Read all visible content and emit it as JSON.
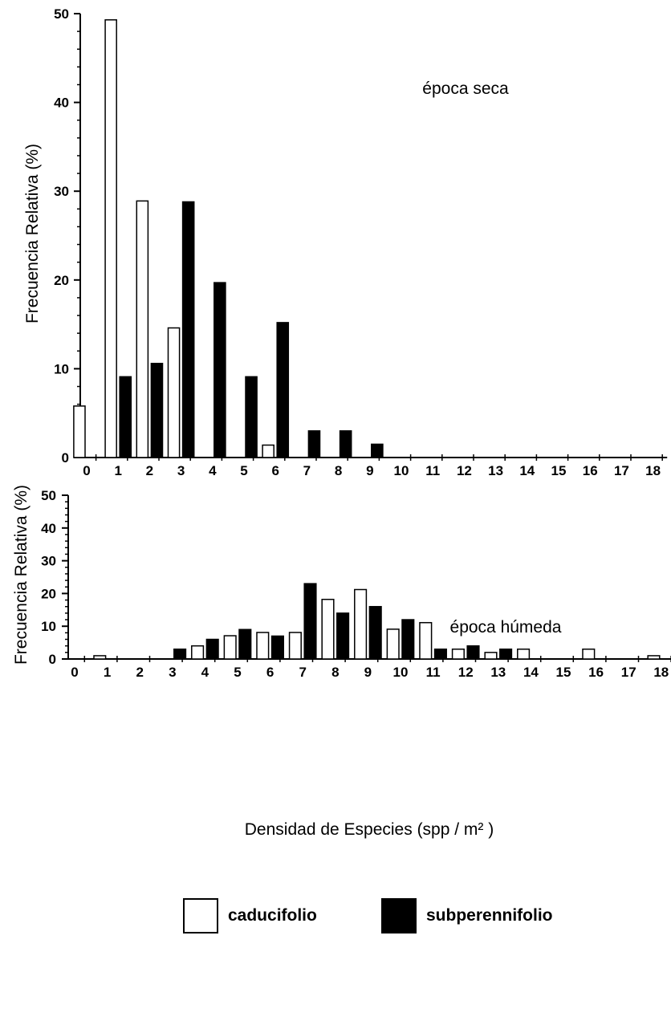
{
  "chart_data": [
    {
      "type": "bar",
      "title": "",
      "annotation": "época seca",
      "xlabel": "",
      "ylabel": "Frecuencia Relativa (%)",
      "ylim": [
        0,
        50
      ],
      "yticks": [
        0,
        10,
        20,
        30,
        40,
        50
      ],
      "categories": [
        "0",
        "1",
        "2",
        "3",
        "4",
        "5",
        "6",
        "7",
        "8",
        "9",
        "10",
        "11",
        "12",
        "13",
        "14",
        "15",
        "16",
        "17",
        "18"
      ],
      "series": [
        {
          "name": "caducifolio",
          "color": "#ffffff",
          "values": [
            5.8,
            49.3,
            28.9,
            14.6,
            0,
            0,
            1.4,
            0,
            0,
            0,
            0,
            0,
            0,
            0,
            0,
            0,
            0,
            0,
            0
          ]
        },
        {
          "name": "subperennifolio",
          "color": "#000000",
          "values": [
            0,
            9.1,
            10.6,
            28.8,
            19.7,
            9.1,
            15.2,
            3.0,
            3.0,
            1.5,
            0,
            0,
            0,
            0,
            0,
            0,
            0,
            0,
            0
          ]
        }
      ],
      "grid": false,
      "legend": "bottom"
    },
    {
      "type": "bar",
      "title": "",
      "annotation": "época húmeda",
      "xlabel": "Densidad de Especies (spp / m² )",
      "ylabel": "Frecuencia Relativa (%)",
      "ylim": [
        0,
        50
      ],
      "yticks": [
        0,
        10,
        20,
        30,
        40,
        50
      ],
      "categories": [
        "0",
        "1",
        "2",
        "3",
        "4",
        "5",
        "6",
        "7",
        "8",
        "9",
        "10",
        "11",
        "12",
        "13",
        "14",
        "15",
        "16",
        "17",
        "18"
      ],
      "series": [
        {
          "name": "caducifolio",
          "color": "#ffffff",
          "values": [
            0,
            1.0,
            0,
            0,
            4.0,
            7.1,
            8.1,
            8.1,
            18.2,
            21.2,
            9.1,
            11.1,
            3.0,
            2.0,
            3.0,
            0,
            3.0,
            0,
            1.0
          ]
        },
        {
          "name": "subperennifolio",
          "color": "#000000",
          "values": [
            0,
            0,
            0,
            3.0,
            6.0,
            9.0,
            7.0,
            23.0,
            14.0,
            16.0,
            12.0,
            3.0,
            4.0,
            3.0,
            0,
            0,
            0,
            0,
            0
          ]
        }
      ],
      "grid": false,
      "legend": "bottom"
    }
  ],
  "legend": {
    "items": [
      {
        "label": "caducifolio",
        "color": "#ffffff"
      },
      {
        "label": "subperennifolio",
        "color": "#000000"
      }
    ]
  }
}
